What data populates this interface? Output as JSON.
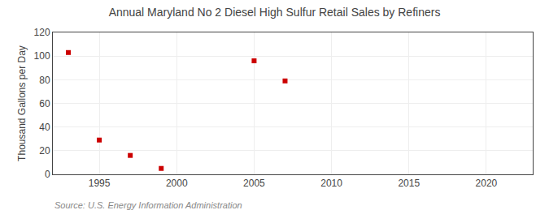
{
  "chart_data": {
    "type": "scatter",
    "title": "Annual Maryland No 2 Diesel High Sulfur Retail Sales by Refiners",
    "y_label": "Thousand Gallons per Day",
    "annotations": [
      "Source: U.S. Energy Information Administration"
    ],
    "x": [
      1993,
      1995,
      1997,
      1999,
      2005,
      2007
    ],
    "values": [
      103,
      29,
      16,
      5,
      96,
      79
    ],
    "color": "#cc0000",
    "marker": "square",
    "xlim": [
      1992,
      2023
    ],
    "ylim": [
      0,
      120
    ],
    "xticks": [
      1995,
      2000,
      2005,
      2010,
      2015,
      2020
    ],
    "yticks": [
      0,
      20,
      40,
      60,
      80,
      100,
      120
    ],
    "grid": true
  }
}
